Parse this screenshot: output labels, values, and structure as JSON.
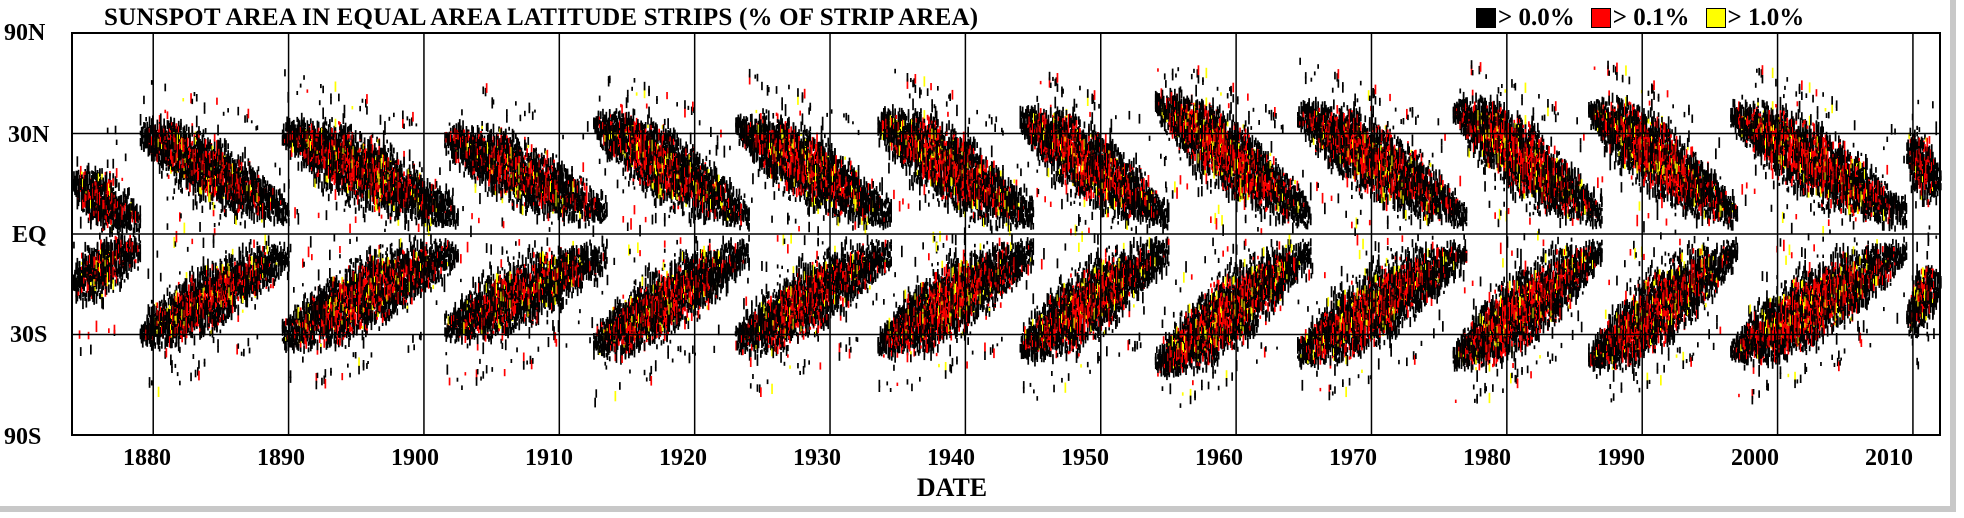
{
  "chart_data": {
    "type": "heatmap",
    "title": "SUNSPOT AREA IN EQUAL AREA LATITUDE STRIPS (% OF STRIP AREA)",
    "xlabel": "DATE",
    "ylabel": "",
    "xlim": [
      1874,
      2012
    ],
    "ylim": [
      -90,
      90
    ],
    "y_axis_scale": "sine-latitude (equal area)",
    "x_ticks": [
      1880,
      1890,
      1900,
      1910,
      1920,
      1930,
      1940,
      1950,
      1960,
      1970,
      1980,
      1990,
      2000,
      2010
    ],
    "y_ticks": [
      {
        "value": 90,
        "label": "90N"
      },
      {
        "value": 30,
        "label": "30N"
      },
      {
        "value": 0,
        "label": "EQ"
      },
      {
        "value": -30,
        "label": "30S"
      },
      {
        "value": -90,
        "label": "90S"
      }
    ],
    "grid": true,
    "legend_position": "top-right",
    "legend": [
      {
        "label": "> 0.0%",
        "color": "#000000"
      },
      {
        "label": "> 0.1%",
        "color": "#ff0000"
      },
      {
        "label": "> 1.0%",
        "color": "#ffff00"
      }
    ],
    "cycles": [
      {
        "start": 1874.0,
        "end": 1879.0,
        "start_lat": 14,
        "end_lat": 4,
        "intensity": 0.55
      },
      {
        "start": 1879.0,
        "end": 1890.0,
        "start_lat": 30,
        "end_lat": 6,
        "intensity": 0.75
      },
      {
        "start": 1889.5,
        "end": 1902.5,
        "start_lat": 30,
        "end_lat": 5,
        "intensity": 0.85
      },
      {
        "start": 1901.5,
        "end": 1913.5,
        "start_lat": 28,
        "end_lat": 6,
        "intensity": 0.75
      },
      {
        "start": 1912.5,
        "end": 1924.0,
        "start_lat": 33,
        "end_lat": 5,
        "intensity": 0.85
      },
      {
        "start": 1923.0,
        "end": 1934.5,
        "start_lat": 32,
        "end_lat": 5,
        "intensity": 0.85
      },
      {
        "start": 1933.5,
        "end": 1945.0,
        "start_lat": 33,
        "end_lat": 5,
        "intensity": 0.95
      },
      {
        "start": 1944.0,
        "end": 1955.0,
        "start_lat": 34,
        "end_lat": 5,
        "intensity": 0.95
      },
      {
        "start": 1954.0,
        "end": 1965.5,
        "start_lat": 40,
        "end_lat": 5,
        "intensity": 1.0
      },
      {
        "start": 1964.5,
        "end": 1977.0,
        "start_lat": 36,
        "end_lat": 5,
        "intensity": 0.95
      },
      {
        "start": 1976.0,
        "end": 1987.0,
        "start_lat": 38,
        "end_lat": 5,
        "intensity": 1.0
      },
      {
        "start": 1986.0,
        "end": 1997.0,
        "start_lat": 38,
        "end_lat": 5,
        "intensity": 1.0
      },
      {
        "start": 1996.5,
        "end": 2009.5,
        "start_lat": 36,
        "end_lat": 5,
        "intensity": 0.95
      },
      {
        "start": 2009.5,
        "end": 2012.0,
        "start_lat": 24,
        "end_lat": 14,
        "intensity": 0.7
      }
    ]
  }
}
